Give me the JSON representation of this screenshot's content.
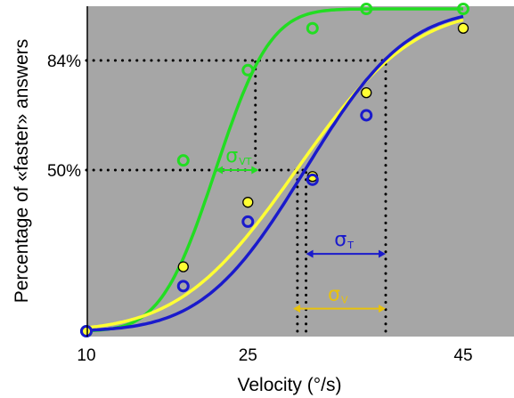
{
  "chart_data": {
    "type": "line",
    "title": "",
    "xlabel": "Velocity (°/s)",
    "ylabel": "Percentage of «faster» answers",
    "xlim": [
      10,
      46
    ],
    "ylim": [
      0,
      1.02
    ],
    "x_ticks": [
      {
        "value": 10,
        "label": "10"
      },
      {
        "value": 25,
        "label": "25"
      },
      {
        "value": 45,
        "label": "45"
      }
    ],
    "y_ticks": [
      {
        "value": 0.84,
        "label": "84%"
      },
      {
        "value": 0.5,
        "label": "50%"
      }
    ],
    "grid": false,
    "legend": "none",
    "background_color": "#a6a6a6",
    "series": [
      {
        "key": "green",
        "color": "#22dd22",
        "marker": "ring",
        "fit": {
          "mu": 22.0,
          "sigma": 4.0
        },
        "points": [
          {
            "x": 10,
            "y": 0.0
          },
          {
            "x": 19,
            "y": 0.53
          },
          {
            "x": 25,
            "y": 0.81
          },
          {
            "x": 31,
            "y": 0.94
          },
          {
            "x": 36,
            "y": 1.0
          },
          {
            "x": 45,
            "y": 1.0
          }
        ]
      },
      {
        "key": "yellow",
        "color": "#ffff33",
        "marker": "filled",
        "fit": {
          "mu": 29.5,
          "sigma": 8.5
        },
        "points": [
          {
            "x": 10,
            "y": 0.0
          },
          {
            "x": 19,
            "y": 0.2
          },
          {
            "x": 25,
            "y": 0.4
          },
          {
            "x": 31,
            "y": 0.48
          },
          {
            "x": 36,
            "y": 0.74
          },
          {
            "x": 45,
            "y": 0.94
          }
        ]
      },
      {
        "key": "blue",
        "color": "#1a1acc",
        "marker": "ring",
        "fit": {
          "mu": 30.3,
          "sigma": 7.4
        },
        "points": [
          {
            "x": 10,
            "y": 0.0
          },
          {
            "x": 19,
            "y": 0.14
          },
          {
            "x": 25,
            "y": 0.34
          },
          {
            "x": 31,
            "y": 0.47
          },
          {
            "x": 36,
            "y": 0.67
          }
        ]
      }
    ],
    "guides": {
      "dotted_color": "#000000",
      "y84_from_x": 10,
      "y84_to_x": 37.8,
      "y50_from_x": 10,
      "y50_to_x": 30.4,
      "verticals": [
        {
          "x": 25.7,
          "from_y": 0.5,
          "to_y": 0.84
        },
        {
          "x": 29.6,
          "from_y": 0,
          "to_y": 0.5
        },
        {
          "x": 30.4,
          "from_y": 0,
          "to_y": 0.5
        },
        {
          "x": 37.8,
          "from_y": 0,
          "to_y": 0.84
        }
      ]
    },
    "annotations": [
      {
        "symbol": "σ",
        "subscript": "VT",
        "color": "#22dd22",
        "from_x": 22.0,
        "to_x": 26.0,
        "y": 0.5
      },
      {
        "symbol": "σ",
        "subscript": "T",
        "color": "#1a1acc",
        "from_x": 30.4,
        "to_x": 37.8,
        "y": 0.24
      },
      {
        "symbol": "σ",
        "subscript": "V",
        "color": "#e8c20c",
        "from_x": 29.2,
        "to_x": 37.8,
        "y": 0.07
      }
    ]
  }
}
